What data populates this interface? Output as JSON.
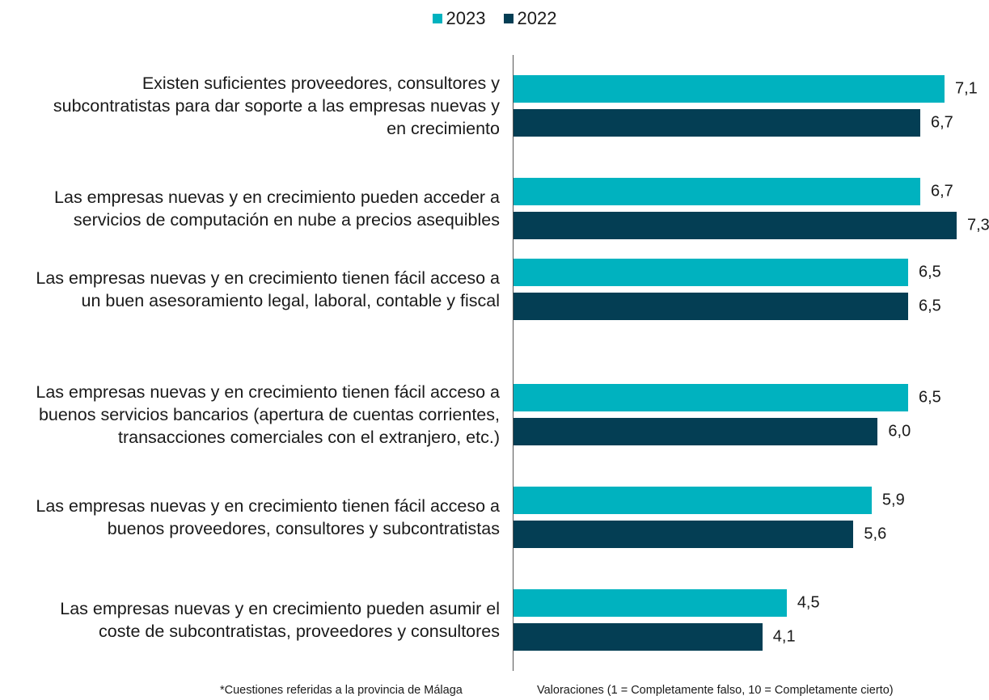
{
  "chart_data": {
    "type": "bar",
    "orientation": "horizontal",
    "categories": [
      "Existen suficientes proveedores, consultores y subcontratistas para dar soporte a las empresas nuevas y en crecimiento",
      "Las empresas nuevas y en crecimiento pueden acceder a servicios de computación en nube a precios asequibles",
      "Las empresas nuevas y en crecimiento tienen fácil acceso a un buen asesoramiento legal, laboral, contable y fiscal",
      "Las empresas nuevas y en crecimiento tienen fácil acceso a buenos servicios bancarios (apertura de cuentas corrientes, transacciones comerciales con el extranjero, etc.)",
      "Las empresas nuevas y en crecimiento tienen fácil acceso a buenos proveedores, consultores y subcontratistas",
      "Las empresas nuevas y en crecimiento pueden asumir el coste de subcontratistas, proveedores y consultores"
    ],
    "category_lines": [
      [
        "Existen suficientes proveedores, consultores y",
        "subcontratistas para dar soporte a las empresas nuevas y",
        "en crecimiento"
      ],
      [
        "Las empresas nuevas y en crecimiento pueden acceder a",
        "servicios de computación en nube a precios asequibles"
      ],
      [
        "Las empresas nuevas y en crecimiento tienen fácil acceso a",
        "un buen asesoramiento legal, laboral, contable y fiscal"
      ],
      [
        "Las empresas nuevas y en crecimiento tienen fácil acceso a",
        "buenos servicios bancarios (apertura de cuentas corrientes,",
        "transacciones comerciales con el extranjero, etc.)"
      ],
      [
        "Las empresas nuevas y en crecimiento tienen fácil acceso a",
        "buenos proveedores, consultores y subcontratistas"
      ],
      [
        "Las empresas nuevas y en crecimiento pueden asumir el",
        "coste de subcontratistas, proveedores y consultores"
      ]
    ],
    "series": [
      {
        "name": "2023",
        "color": "#00b2bf",
        "values": [
          7.1,
          6.7,
          6.5,
          6.5,
          5.9,
          4.5
        ],
        "labels": [
          "7,1",
          "6,7",
          "6,5",
          "6,5",
          "5,9",
          "4,5"
        ]
      },
      {
        "name": "2022",
        "color": "#043e54",
        "values": [
          6.7,
          7.3,
          6.5,
          6.0,
          5.6,
          4.1
        ],
        "labels": [
          "6,7",
          "7,3",
          "6,5",
          "6,0",
          "5,6",
          "4,1"
        ]
      }
    ],
    "xlim": [
      0,
      7.3
    ],
    "legend_position": "top-center",
    "grid": false
  },
  "footnotes": {
    "left": "*Cuestiones referidas a la provincia de Málaga",
    "right": "Valoraciones (1 = Completamente falso, 10 = Completamente cierto)"
  }
}
